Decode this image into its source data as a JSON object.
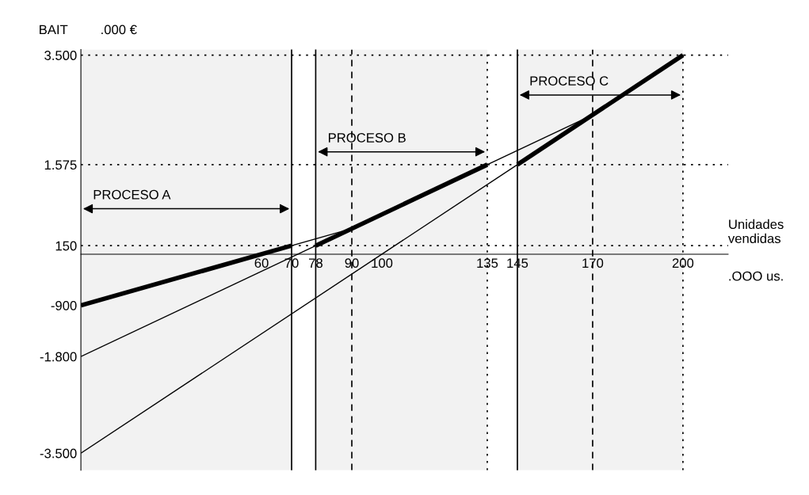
{
  "chart_data": {
    "type": "line",
    "ylabel": "BAIT",
    "xlabel": "Unidades vendidas",
    "annotations": [
      ".000 €",
      ".OOO us."
    ],
    "series": [
      {
        "color": "#000000",
        "x": [
          0,
          90
        ],
        "values": [
          -900,
          450
        ]
      },
      {
        "color": "#000000",
        "x": [
          0,
          170
        ],
        "values": [
          -1800,
          2450
        ]
      },
      {
        "color": "#000000",
        "x": [
          0,
          170
        ],
        "values": [
          -3500,
          2450
        ]
      },
      {
        "color": "#000000",
        "x": [
          0,
          70
        ],
        "values": [
          -900,
          150
        ]
      },
      {
        "color": "#000000",
        "x": [
          78,
          135
        ],
        "values": [
          150,
          1575
        ]
      },
      {
        "color": "#000000",
        "x": [
          145,
          200
        ],
        "values": [
          1575,
          3500
        ]
      }
    ],
    "xlim": [
      0,
      215
    ],
    "ylim": [
      -3800,
      3600
    ],
    "xticks": [
      60,
      70,
      78,
      90,
      100,
      135,
      145,
      170,
      200
    ],
    "yticks": [
      {
        "value": 3500,
        "label": "3.500"
      },
      {
        "value": 1575,
        "label": "1.575"
      },
      150,
      {
        "value": -900,
        "label": "-900"
      },
      {
        "value": -1800,
        "label": "-1.800"
      },
      {
        "value": -3500,
        "label": "-3.500"
      }
    ],
    "ref_lines": [
      {
        "axis": "y",
        "value": 3500,
        "line_style": "dotted"
      },
      {
        "axis": "y",
        "value": 1575,
        "line_style": "dotted"
      },
      {
        "axis": "y",
        "value": 150,
        "line_style": "dotted"
      },
      {
        "axis": "x",
        "value": 70,
        "line_style": "solid"
      },
      {
        "axis": "x",
        "value": 78,
        "line_style": "solid"
      },
      {
        "axis": "x",
        "value": 90,
        "line_style": "dashed"
      },
      {
        "axis": "x",
        "value": 135,
        "line_style": "dotted"
      },
      {
        "axis": "x",
        "value": 145,
        "line_style": "solid"
      },
      {
        "axis": "x",
        "value": 170,
        "line_style": "dashed"
      },
      {
        "axis": "x",
        "value": 200,
        "line_style": "dotted"
      }
    ],
    "bands": [
      {
        "axis": "x",
        "from": 0,
        "to": 70,
        "label": "PROCESO A",
        "color": "#f2f2f2"
      },
      {
        "axis": "x",
        "from": 78,
        "to": 135,
        "label": "PROCESO B",
        "color": "#f2f2f2"
      },
      {
        "axis": "x",
        "from": 145,
        "to": 200,
        "label": "PROCESO C",
        "color": "#f2f2f2"
      }
    ],
    "grid": false,
    "legend": false,
    "marker": "none"
  }
}
